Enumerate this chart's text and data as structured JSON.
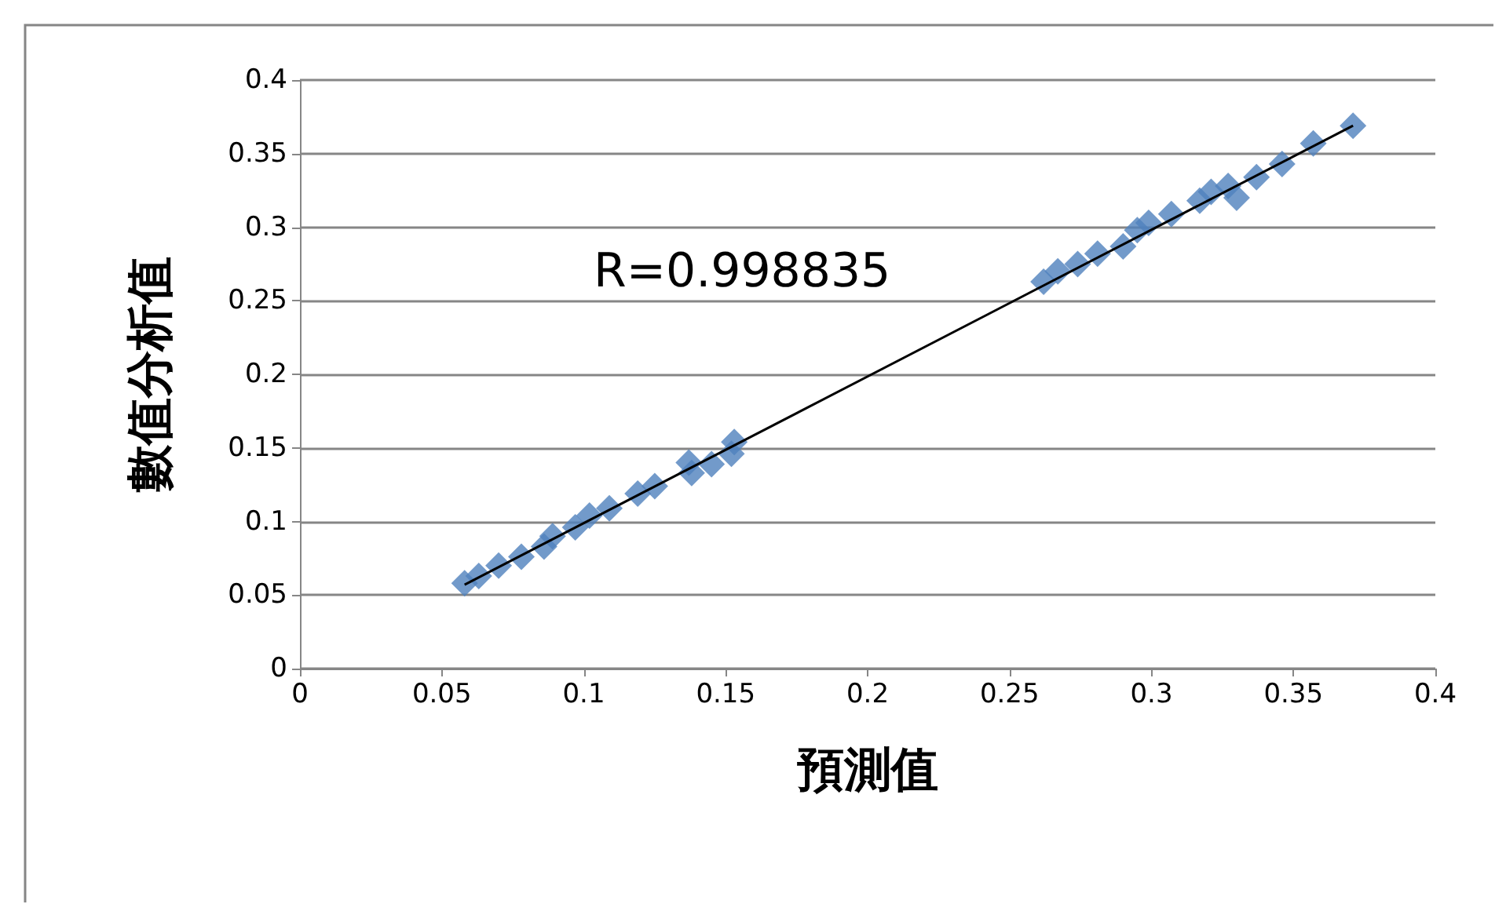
{
  "chart_data": {
    "type": "scatter",
    "xlabel": "預測值",
    "ylabel": "數值分析值",
    "xlim": [
      0,
      0.4
    ],
    "ylim": [
      0,
      0.4
    ],
    "xticks": [
      0,
      0.05,
      0.1,
      0.15,
      0.2,
      0.25,
      0.3,
      0.35,
      0.4
    ],
    "yticks": [
      0,
      0.05,
      0.1,
      0.15,
      0.2,
      0.25,
      0.3,
      0.35,
      0.4
    ],
    "grid": "y",
    "annotations": [
      "R=0.998835"
    ],
    "series": [
      {
        "marker": "diamond",
        "color": "#4f81bd",
        "x": [
          0.058,
          0.063,
          0.07,
          0.078,
          0.086,
          0.089,
          0.097,
          0.102,
          0.109,
          0.119,
          0.125,
          0.137,
          0.138,
          0.145,
          0.152,
          0.153,
          0.262,
          0.267,
          0.274,
          0.281,
          0.29,
          0.295,
          0.299,
          0.307,
          0.317,
          0.321,
          0.327,
          0.33,
          0.337,
          0.346,
          0.357,
          0.371
        ],
        "values": [
          0.058,
          0.063,
          0.07,
          0.076,
          0.083,
          0.09,
          0.096,
          0.104,
          0.109,
          0.119,
          0.124,
          0.14,
          0.133,
          0.139,
          0.146,
          0.154,
          0.263,
          0.27,
          0.275,
          0.282,
          0.287,
          0.298,
          0.303,
          0.309,
          0.318,
          0.324,
          0.328,
          0.32,
          0.334,
          0.343,
          0.357,
          0.369
        ]
      },
      {
        "type": "line",
        "marker": "none",
        "color": "#000000",
        "x": [
          0.058,
          0.371
        ],
        "values": [
          0.057,
          0.369
        ]
      }
    ]
  }
}
